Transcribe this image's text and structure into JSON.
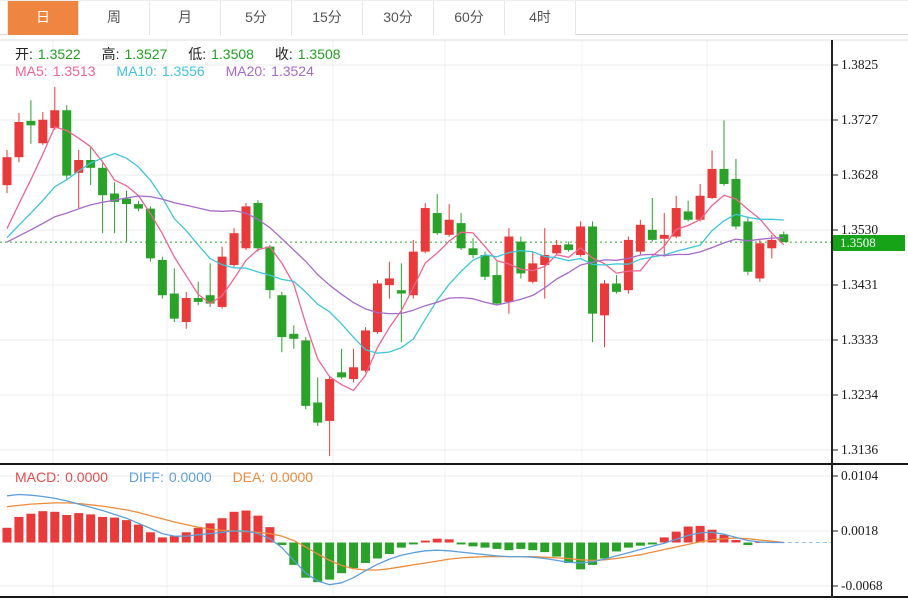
{
  "tabs": [
    {
      "name": "tab-day",
      "label": "日",
      "active": true
    },
    {
      "name": "tab-week",
      "label": "周",
      "active": false
    },
    {
      "name": "tab-month",
      "label": "月",
      "active": false
    },
    {
      "name": "tab-5min",
      "label": "5分",
      "active": false
    },
    {
      "name": "tab-15min",
      "label": "15分",
      "active": false
    },
    {
      "name": "tab-30min",
      "label": "30分",
      "active": false
    },
    {
      "name": "tab-60min",
      "label": "60分",
      "active": false
    },
    {
      "name": "tab-4hour",
      "label": "4时",
      "active": false
    }
  ],
  "ohlc_legend": {
    "open_label": "开:",
    "open": "1.3522",
    "high_label": "高:",
    "high": "1.3527",
    "low_label": "低:",
    "low": "1.3508",
    "close_label": "收:",
    "close": "1.3508"
  },
  "ma_legend": {
    "ma5_label": "MA5:",
    "ma5": "1.3513",
    "ma10_label": "MA10:",
    "ma10": "1.3556",
    "ma20_label": "MA20:",
    "ma20": "1.3524"
  },
  "macd_legend": {
    "macd_label": "MACD:",
    "macd": "0.0000",
    "diff_label": "DIFF:",
    "diff": "0.0000",
    "dea_label": "DEA:",
    "dea": "0.0000"
  },
  "price_axis": {
    "labels": [
      "1.3825",
      "1.3727",
      "1.3628",
      "1.3530",
      "1.3431",
      "1.3333",
      "1.3234",
      "1.3136"
    ],
    "current_price": "1.3508"
  },
  "macd_axis": {
    "labels": [
      "0.0104",
      "0.0018",
      "-0.0068"
    ]
  },
  "colors": {
    "up": "#e83a3a",
    "down": "#2aa22a",
    "ma5": "#ef6590",
    "ma10": "#3ec6da",
    "ma20": "#a76ac9",
    "diff": "#5c9fdb",
    "dea": "#ee8b3b",
    "macd_text": "#e04f4f",
    "value_green": "#21a121",
    "close_line": "#2cab2c",
    "badge": "#17a317",
    "tab_active": "#ee8540",
    "grid": "#ebebeb",
    "vgrid": "#f0f0f0",
    "axis_line": "#222222",
    "divider": "#161616",
    "top_border": "#dcdcdc",
    "zero_dash": "#93c4ec"
  },
  "chart_data": {
    "type": "candlestick+macd",
    "legend_position": "top-left",
    "x_labels_visible": false,
    "main_panel": {
      "ylim": [
        1.3136,
        1.3825
      ],
      "y_ticks": [
        1.3825,
        1.3727,
        1.3628,
        1.353,
        1.3431,
        1.3333,
        1.3234,
        1.3136
      ],
      "current_price": 1.3508,
      "ma_periods": [
        5,
        10,
        20
      ],
      "ma_prehistory_close": 1.35,
      "candles_ohlc": [
        [
          1.361,
          1.3673,
          1.3596,
          1.366
        ],
        [
          1.366,
          1.3739,
          1.3651,
          1.3723
        ],
        [
          1.3725,
          1.3762,
          1.3684,
          1.3717
        ],
        [
          1.3685,
          1.3741,
          1.3682,
          1.3727
        ],
        [
          1.3712,
          1.3786,
          1.3709,
          1.3744
        ],
        [
          1.3744,
          1.3753,
          1.3618,
          1.3627
        ],
        [
          1.3632,
          1.3673,
          1.3569,
          1.3655
        ],
        [
          1.3655,
          1.3678,
          1.361,
          1.3641
        ],
        [
          1.3641,
          1.365,
          1.3524,
          1.3592
        ],
        [
          1.3595,
          1.3615,
          1.3524,
          1.358
        ],
        [
          1.3586,
          1.36,
          1.3509,
          1.3576
        ],
        [
          1.3576,
          1.3582,
          1.3563,
          1.3568
        ],
        [
          1.3568,
          1.3572,
          1.3473,
          1.3479
        ],
        [
          1.3476,
          1.3482,
          1.3407,
          1.3413
        ],
        [
          1.3416,
          1.3461,
          1.3365,
          1.3371
        ],
        [
          1.3365,
          1.3419,
          1.3353,
          1.3408
        ],
        [
          1.3408,
          1.3437,
          1.3395,
          1.3401
        ],
        [
          1.3413,
          1.347,
          1.3392,
          1.3398
        ],
        [
          1.3392,
          1.35,
          1.3389,
          1.3482
        ],
        [
          1.3467,
          1.3533,
          1.3464,
          1.3524
        ],
        [
          1.3497,
          1.3578,
          1.3494,
          1.3572
        ],
        [
          1.3578,
          1.3583,
          1.3491,
          1.3497
        ],
        [
          1.35,
          1.3503,
          1.3407,
          1.3422
        ],
        [
          1.3413,
          1.3419,
          1.3311,
          1.3338
        ],
        [
          1.3344,
          1.3359,
          1.3317,
          1.3335
        ],
        [
          1.3332,
          1.3338,
          1.3209,
          1.3215
        ],
        [
          1.3221,
          1.3266,
          1.3179,
          1.3185
        ],
        [
          1.3188,
          1.3269,
          1.3125,
          1.3263
        ],
        [
          1.3275,
          1.3317,
          1.3263,
          1.3266
        ],
        [
          1.3263,
          1.3317,
          1.3257,
          1.3284
        ],
        [
          1.3278,
          1.3356,
          1.3275,
          1.335
        ],
        [
          1.3347,
          1.344,
          1.3344,
          1.3434
        ],
        [
          1.3431,
          1.3473,
          1.3407,
          1.3443
        ],
        [
          1.3422,
          1.347,
          1.3329,
          1.3416
        ],
        [
          1.3413,
          1.3512,
          1.3407,
          1.3491
        ],
        [
          1.3491,
          1.3578,
          1.3488,
          1.3569
        ],
        [
          1.356,
          1.3594,
          1.3521,
          1.3524
        ],
        [
          1.3521,
          1.3576,
          1.3518,
          1.3548
        ],
        [
          1.3542,
          1.356,
          1.3494,
          1.3497
        ],
        [
          1.3497,
          1.3515,
          1.3479,
          1.3485
        ],
        [
          1.3485,
          1.3491,
          1.344,
          1.3446
        ],
        [
          1.3449,
          1.3473,
          1.3395,
          1.3398
        ],
        [
          1.3401,
          1.3533,
          1.338,
          1.3518
        ],
        [
          1.3509,
          1.3518,
          1.3443,
          1.3452
        ],
        [
          1.3437,
          1.3491,
          1.3434,
          1.347
        ],
        [
          1.3467,
          1.3533,
          1.3407,
          1.3485
        ],
        [
          1.3488,
          1.3512,
          1.3485,
          1.3503
        ],
        [
          1.3504,
          1.3509,
          1.3491,
          1.3494
        ],
        [
          1.3485,
          1.3545,
          1.3482,
          1.3536
        ],
        [
          1.3536,
          1.3545,
          1.3329,
          1.338
        ],
        [
          1.3377,
          1.344,
          1.332,
          1.3434
        ],
        [
          1.3434,
          1.3449,
          1.3416,
          1.3419
        ],
        [
          1.3422,
          1.3518,
          1.3416,
          1.3512
        ],
        [
          1.3491,
          1.3548,
          1.3485,
          1.3539
        ],
        [
          1.353,
          1.3587,
          1.3509,
          1.3512
        ],
        [
          1.3514,
          1.356,
          1.3482,
          1.3521
        ],
        [
          1.3518,
          1.3591,
          1.3515,
          1.3569
        ],
        [
          1.3563,
          1.3582,
          1.3545,
          1.3548
        ],
        [
          1.3548,
          1.3612,
          1.3545,
          1.3591
        ],
        [
          1.3587,
          1.3672,
          1.3585,
          1.3639
        ],
        [
          1.3639,
          1.3726,
          1.3609,
          1.3612
        ],
        [
          1.3621,
          1.3657,
          1.3531,
          1.3536
        ],
        [
          1.3545,
          1.3554,
          1.3449,
          1.3455
        ],
        [
          1.3443,
          1.3512,
          1.3437,
          1.3506
        ],
        [
          1.3497,
          1.3521,
          1.3479,
          1.3512
        ],
        [
          1.3522,
          1.3527,
          1.3508,
          1.3508
        ]
      ]
    },
    "macd_panel": {
      "ylim": [
        -0.0068,
        0.0104
      ],
      "y_ticks": [
        0.0104,
        0.0018,
        -0.0068
      ],
      "histogram": [
        0.0023,
        0.004,
        0.0045,
        0.0049,
        0.0048,
        0.0043,
        0.0046,
        0.0044,
        0.004,
        0.0039,
        0.0035,
        0.0028,
        0.0016,
        0.0008,
        0.001,
        0.0016,
        0.0023,
        0.003,
        0.0038,
        0.0048,
        0.005,
        0.0042,
        0.0024,
        -0.0004,
        -0.0035,
        -0.0055,
        -0.0062,
        -0.0058,
        -0.0048,
        -0.004,
        -0.0032,
        -0.0025,
        -0.0018,
        -0.0008,
        -0.0003,
        0.0003,
        0.0006,
        0.0005,
        -0.0003,
        -0.0006,
        -0.0008,
        -0.001,
        -0.0012,
        -0.001,
        -0.0012,
        -0.0015,
        -0.0022,
        -0.0032,
        -0.0042,
        -0.0035,
        -0.0025,
        -0.0014,
        -0.0008,
        -0.0005,
        -0.0003,
        0.0008,
        0.0017,
        0.0025,
        0.0026,
        0.002,
        0.0012,
        0.0004,
        -0.0004,
        0.0001,
        0.0,
        0.0
      ],
      "diff": [
        0.0073,
        0.0075,
        0.0074,
        0.0072,
        0.0069,
        0.0065,
        0.006,
        0.0055,
        0.005,
        0.0044,
        0.0038,
        0.003,
        0.0022,
        0.0014,
        0.001,
        0.001,
        0.0012,
        0.0014,
        0.0016,
        0.0018,
        0.0018,
        0.0014,
        0.0006,
        -0.0008,
        -0.0028,
        -0.0048,
        -0.006,
        -0.0066,
        -0.0063,
        -0.0055,
        -0.0044,
        -0.0034,
        -0.0026,
        -0.002,
        -0.0016,
        -0.0013,
        -0.0012,
        -0.0013,
        -0.0015,
        -0.0017,
        -0.0019,
        -0.0021,
        -0.0022,
        -0.0022,
        -0.0023,
        -0.0025,
        -0.0028,
        -0.0031,
        -0.0032,
        -0.003,
        -0.0026,
        -0.0021,
        -0.0016,
        -0.0011,
        -0.0006,
        -0.0001,
        0.0005,
        0.0011,
        0.0015,
        0.0016,
        0.0013,
        0.0008,
        0.0003,
        0.0001,
        0.0,
        0.0
      ],
      "dea": [
        0.0056,
        0.0058,
        0.006,
        0.0061,
        0.0062,
        0.0062,
        0.0061,
        0.0059,
        0.0057,
        0.0054,
        0.0051,
        0.0047,
        0.0042,
        0.0037,
        0.0032,
        0.0028,
        0.0024,
        0.0021,
        0.0019,
        0.0018,
        0.0017,
        0.0016,
        0.0014,
        0.001,
        0.0003,
        -0.0007,
        -0.0018,
        -0.0028,
        -0.0036,
        -0.0041,
        -0.0043,
        -0.0043,
        -0.0041,
        -0.0038,
        -0.0035,
        -0.0032,
        -0.0029,
        -0.0026,
        -0.0024,
        -0.0023,
        -0.0022,
        -0.0022,
        -0.0022,
        -0.0022,
        -0.0022,
        -0.0023,
        -0.0024,
        -0.0025,
        -0.0027,
        -0.0028,
        -0.0027,
        -0.0025,
        -0.0022,
        -0.0019,
        -0.0015,
        -0.0011,
        -0.0007,
        -0.0003,
        0.0001,
        0.0004,
        0.0006,
        0.0007,
        0.0006,
        0.0004,
        0.0002,
        0.0
      ]
    }
  }
}
